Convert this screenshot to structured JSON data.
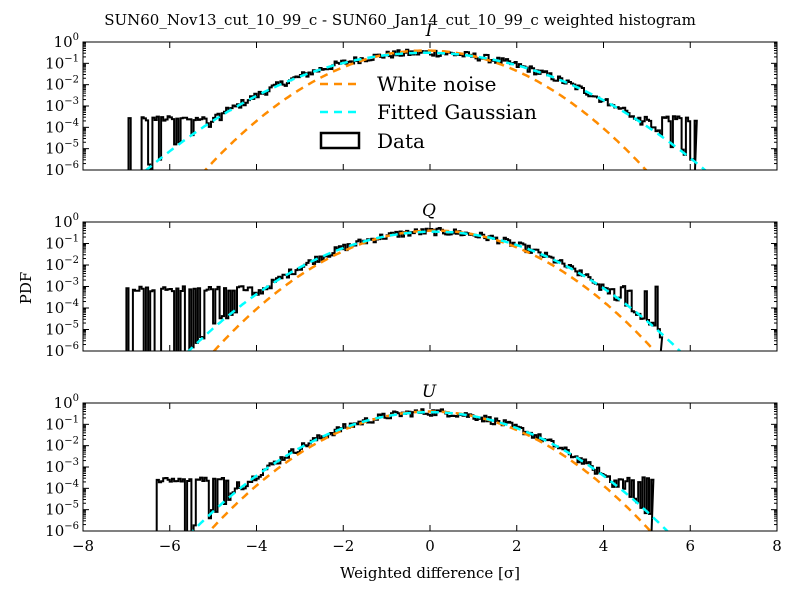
{
  "figure": {
    "title": "SUN60_Nov13_cut_10_99_c - SUN60_Jan14_cut_10_99_c weighted histogram",
    "ylabel": "PDF",
    "xlabel": "Weighted difference [σ]"
  },
  "colors": {
    "white_noise": "#ff8c00",
    "fitted_gaussian": "#00ffff",
    "data": "#000000"
  },
  "chart_data": [
    {
      "type": "line",
      "panel": "I",
      "title": "I",
      "xlim": [
        -8,
        8
      ],
      "ylim_log10": [
        -6,
        0
      ],
      "x_ticks": [
        -8,
        -6,
        -4,
        -2,
        0,
        2,
        4,
        6,
        8
      ],
      "x_tick_labels": [
        "−8",
        "−6",
        "−4",
        "−2",
        "0",
        "2",
        "4",
        "6",
        "8"
      ],
      "y_ticks": [
        {
          "base": "10",
          "exp": "0"
        },
        {
          "base": "10",
          "exp": "-1"
        },
        {
          "base": "10",
          "exp": "-2"
        },
        {
          "base": "10",
          "exp": "-3"
        },
        {
          "base": "10",
          "exp": "-4"
        },
        {
          "base": "10",
          "exp": "-5"
        },
        {
          "base": "10",
          "exp": "-6"
        }
      ],
      "legend": {
        "position": "center",
        "entries": [
          "White noise",
          "Fitted Gaussian",
          "Data"
        ]
      },
      "series": [
        {
          "name": "White noise",
          "style": "dashed",
          "mean": -0.1,
          "sigma": 1.0
        },
        {
          "name": "Fitted Gaussian",
          "style": "dashed",
          "mean": -0.1,
          "sigma": 1.28
        },
        {
          "name": "Data",
          "style": "step",
          "mean": -0.1,
          "sigma": 1.28,
          "x_range": [
            -7.0,
            6.1
          ],
          "floor_log10": -6.0,
          "spike_log10": -3.6,
          "noisy_left": -4.6,
          "noisy_right": 4.1
        }
      ]
    },
    {
      "type": "line",
      "panel": "Q",
      "title": "Q",
      "xlim": [
        -8,
        8
      ],
      "ylim_log10": [
        -6,
        0
      ],
      "x_ticks": [
        -8,
        -6,
        -4,
        -2,
        0,
        2,
        4,
        6,
        8
      ],
      "x_tick_labels": [
        "−8",
        "−6",
        "−4",
        "−2",
        "0",
        "2",
        "4",
        "6",
        "8"
      ],
      "y_ticks": [
        {
          "base": "10",
          "exp": "0"
        },
        {
          "base": "10",
          "exp": "-1"
        },
        {
          "base": "10",
          "exp": "-2"
        },
        {
          "base": "10",
          "exp": "-3"
        },
        {
          "base": "10",
          "exp": "-4"
        },
        {
          "base": "10",
          "exp": "-5"
        },
        {
          "base": "10",
          "exp": "-6"
        }
      ],
      "series": [
        {
          "name": "White noise",
          "style": "dashed",
          "mean": 0.1,
          "sigma": 1.0
        },
        {
          "name": "Fitted Gaussian",
          "style": "dashed",
          "mean": 0.1,
          "sigma": 1.12
        },
        {
          "name": "Data",
          "style": "step",
          "mean": 0.1,
          "sigma": 1.12,
          "x_range": [
            -7.0,
            5.3
          ],
          "floor_log10": -6.0,
          "spike_log10": -3.1,
          "noisy_left": -4.0,
          "noisy_right": 3.5
        }
      ]
    },
    {
      "type": "line",
      "panel": "U",
      "title": "U",
      "xlim": [
        -8,
        8
      ],
      "ylim_log10": [
        -6,
        0
      ],
      "x_ticks": [
        -8,
        -6,
        -4,
        -2,
        0,
        2,
        4,
        6,
        8
      ],
      "x_tick_labels": [
        "−8",
        "−6",
        "−4",
        "−2",
        "0",
        "2",
        "4",
        "6",
        "8"
      ],
      "y_ticks": [
        {
          "base": "10",
          "exp": "0"
        },
        {
          "base": "10",
          "exp": "-1"
        },
        {
          "base": "10",
          "exp": "-2"
        },
        {
          "base": "10",
          "exp": "-3"
        },
        {
          "base": "10",
          "exp": "-4"
        },
        {
          "base": "10",
          "exp": "-5"
        },
        {
          "base": "10",
          "exp": "-6"
        }
      ],
      "series": [
        {
          "name": "White noise",
          "style": "dashed",
          "mean": 0.0,
          "sigma": 1.0
        },
        {
          "name": "Fitted Gaussian",
          "style": "dashed",
          "mean": 0.0,
          "sigma": 1.08
        },
        {
          "name": "Data",
          "style": "step",
          "mean": 0.0,
          "sigma": 1.08,
          "x_range": [
            -6.3,
            5.1
          ],
          "floor_log10": -6.0,
          "spike_log10": -3.6,
          "noisy_left": -4.4,
          "noisy_right": 3.6
        }
      ]
    }
  ]
}
